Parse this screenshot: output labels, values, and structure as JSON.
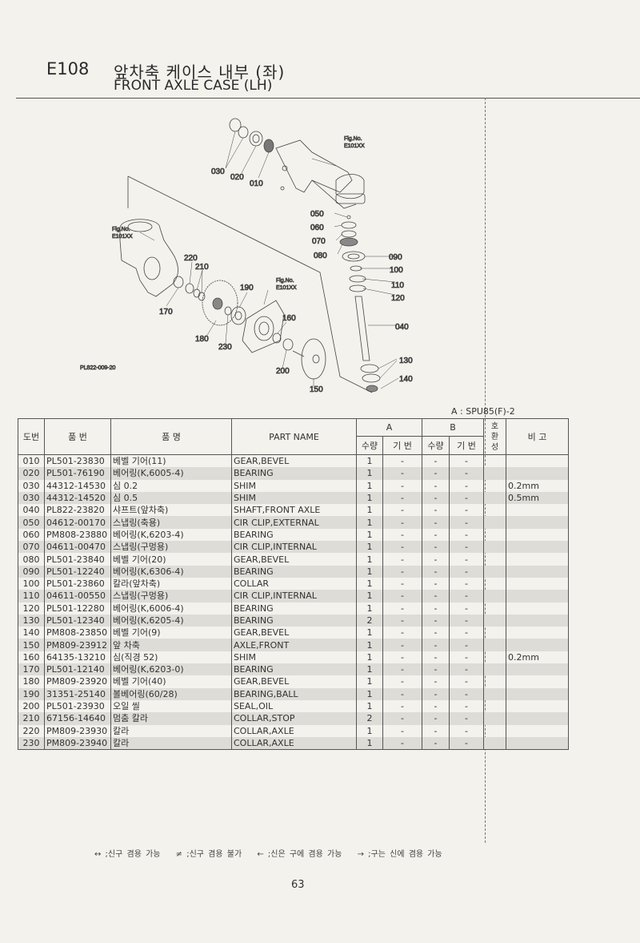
{
  "header": {
    "code": "E108",
    "title_kr": "앞차축 케이스 내부 (좌)",
    "title_en": "FRONT AXLE CASE (LH)"
  },
  "diagram": {
    "drawing_no": "PL822-009-20",
    "fig_ref": "Fig.No.",
    "fig_code": "E101XX",
    "callouts": [
      "010",
      "020",
      "030",
      "040",
      "050",
      "060",
      "070",
      "080",
      "090",
      "100",
      "110",
      "120",
      "130",
      "140",
      "150",
      "160",
      "170",
      "180",
      "190",
      "200",
      "210",
      "220",
      "230"
    ]
  },
  "model_note": "A : SPU85(F)-2",
  "table": {
    "headers": {
      "no": "도번",
      "part_no": "품  번",
      "name_kr": "품       명",
      "part_name": "PART  NAME",
      "group_a": "A",
      "group_b": "B",
      "qty": "수량",
      "serial": "기 번",
      "interchange": "호환성",
      "remarks": "비   고"
    },
    "rows": [
      {
        "no": "010",
        "part_no": "PL501-23830",
        "name_kr": "베벨 기어(11)",
        "part_name": "GEAR,BEVEL",
        "a_qty": "1",
        "a_serial": "-",
        "b_qty": "-",
        "b_serial": "-",
        "interchange": "",
        "remarks": ""
      },
      {
        "no": "020",
        "part_no": "PL501-76190",
        "name_kr": "베어링(K,6005-4)",
        "part_name": "BEARING",
        "a_qty": "1",
        "a_serial": "-",
        "b_qty": "-",
        "b_serial": "-",
        "interchange": "",
        "remarks": ""
      },
      {
        "no": "030",
        "part_no": "44312-14530",
        "name_kr": "심 0.2",
        "part_name": "SHIM",
        "a_qty": "1",
        "a_serial": "-",
        "b_qty": "-",
        "b_serial": "-",
        "interchange": "",
        "remarks": "0.2mm"
      },
      {
        "no": "030",
        "part_no": "44312-14520",
        "name_kr": "심 0.5",
        "part_name": "SHIM",
        "a_qty": "1",
        "a_serial": "-",
        "b_qty": "-",
        "b_serial": "-",
        "interchange": "",
        "remarks": "0.5mm"
      },
      {
        "no": "040",
        "part_no": "PL822-23820",
        "name_kr": "샤프트(앞차축)",
        "part_name": "SHAFT,FRONT AXLE",
        "a_qty": "1",
        "a_serial": "-",
        "b_qty": "-",
        "b_serial": "-",
        "interchange": "",
        "remarks": ""
      },
      {
        "no": "050",
        "part_no": "04612-00170",
        "name_kr": "스냅링(축용)",
        "part_name": "CIR CLIP,EXTERNAL",
        "a_qty": "1",
        "a_serial": "-",
        "b_qty": "-",
        "b_serial": "-",
        "interchange": "",
        "remarks": ""
      },
      {
        "no": "060",
        "part_no": "PM808-23880",
        "name_kr": "베어링(K,6203-4)",
        "part_name": "BEARING",
        "a_qty": "1",
        "a_serial": "-",
        "b_qty": "-",
        "b_serial": "-",
        "interchange": "",
        "remarks": ""
      },
      {
        "no": "070",
        "part_no": "04611-00470",
        "name_kr": "스냅링(구멍용)",
        "part_name": "CIR CLIP,INTERNAL",
        "a_qty": "1",
        "a_serial": "-",
        "b_qty": "-",
        "b_serial": "-",
        "interchange": "",
        "remarks": ""
      },
      {
        "no": "080",
        "part_no": "PL501-23840",
        "name_kr": "베벨 기어(20)",
        "part_name": "GEAR,BEVEL",
        "a_qty": "1",
        "a_serial": "-",
        "b_qty": "-",
        "b_serial": "-",
        "interchange": "",
        "remarks": ""
      },
      {
        "no": "090",
        "part_no": "PL501-12240",
        "name_kr": "베어링(K,6306-4)",
        "part_name": "BEARING",
        "a_qty": "1",
        "a_serial": "-",
        "b_qty": "-",
        "b_serial": "-",
        "interchange": "",
        "remarks": ""
      },
      {
        "no": "100",
        "part_no": "PL501-23860",
        "name_kr": "칼라(앞차축)",
        "part_name": "COLLAR",
        "a_qty": "1",
        "a_serial": "-",
        "b_qty": "-",
        "b_serial": "-",
        "interchange": "",
        "remarks": ""
      },
      {
        "no": "110",
        "part_no": "04611-00550",
        "name_kr": "스냅링(구멍용)",
        "part_name": "CIR CLIP,INTERNAL",
        "a_qty": "1",
        "a_serial": "-",
        "b_qty": "-",
        "b_serial": "-",
        "interchange": "",
        "remarks": ""
      },
      {
        "no": "120",
        "part_no": "PL501-12280",
        "name_kr": "베어링(K,6006-4)",
        "part_name": "BEARING",
        "a_qty": "1",
        "a_serial": "-",
        "b_qty": "-",
        "b_serial": "-",
        "interchange": "",
        "remarks": ""
      },
      {
        "no": "130",
        "part_no": "PL501-12340",
        "name_kr": "베어링(K,6205-4)",
        "part_name": "BEARING",
        "a_qty": "2",
        "a_serial": "-",
        "b_qty": "-",
        "b_serial": "-",
        "interchange": "",
        "remarks": ""
      },
      {
        "no": "140",
        "part_no": "PM808-23850",
        "name_kr": "베벨 기어(9)",
        "part_name": "GEAR,BEVEL",
        "a_qty": "1",
        "a_serial": "-",
        "b_qty": "-",
        "b_serial": "-",
        "interchange": "",
        "remarks": ""
      },
      {
        "no": "150",
        "part_no": "PM809-23912",
        "name_kr": "앞 차축",
        "part_name": "AXLE,FRONT",
        "a_qty": "1",
        "a_serial": "-",
        "b_qty": "-",
        "b_serial": "-",
        "interchange": "",
        "remarks": ""
      },
      {
        "no": "160",
        "part_no": "64135-13210",
        "name_kr": "심(직경 52)",
        "part_name": "SHIM",
        "a_qty": "1",
        "a_serial": "-",
        "b_qty": "-",
        "b_serial": "-",
        "interchange": "",
        "remarks": "0.2mm"
      },
      {
        "no": "170",
        "part_no": "PL501-12140",
        "name_kr": "베어링(K,6203-0)",
        "part_name": "BEARING",
        "a_qty": "1",
        "a_serial": "-",
        "b_qty": "-",
        "b_serial": "-",
        "interchange": "",
        "remarks": ""
      },
      {
        "no": "180",
        "part_no": "PM809-23920",
        "name_kr": "베벨 기어(40)",
        "part_name": "GEAR,BEVEL",
        "a_qty": "1",
        "a_serial": "-",
        "b_qty": "-",
        "b_serial": "-",
        "interchange": "",
        "remarks": ""
      },
      {
        "no": "190",
        "part_no": "31351-25140",
        "name_kr": "볼베어링(60/28)",
        "part_name": "BEARING,BALL",
        "a_qty": "1",
        "a_serial": "-",
        "b_qty": "-",
        "b_serial": "-",
        "interchange": "",
        "remarks": ""
      },
      {
        "no": "200",
        "part_no": "PL501-23930",
        "name_kr": "오일 씰",
        "part_name": "SEAL,OIL",
        "a_qty": "1",
        "a_serial": "-",
        "b_qty": "-",
        "b_serial": "-",
        "interchange": "",
        "remarks": ""
      },
      {
        "no": "210",
        "part_no": "67156-14640",
        "name_kr": "멈춤 칼라",
        "part_name": "COLLAR,STOP",
        "a_qty": "2",
        "a_serial": "-",
        "b_qty": "-",
        "b_serial": "-",
        "interchange": "",
        "remarks": ""
      },
      {
        "no": "220",
        "part_no": "PM809-23930",
        "name_kr": "칼라",
        "part_name": "COLLAR,AXLE",
        "a_qty": "1",
        "a_serial": "-",
        "b_qty": "-",
        "b_serial": "-",
        "interchange": "",
        "remarks": ""
      },
      {
        "no": "230",
        "part_no": "PM809-23940",
        "name_kr": "칼라",
        "part_name": "COLLAR,AXLE",
        "a_qty": "1",
        "a_serial": "-",
        "b_qty": "-",
        "b_serial": "-",
        "interchange": "",
        "remarks": ""
      }
    ]
  },
  "legend": [
    "↔ ;신구 겸용 가능",
    "≠ ;신구 겸용 불가",
    "← ;신은 구에 겸용 가능",
    "→ ;구는 신에 겸용 가능"
  ],
  "page_number": "63"
}
